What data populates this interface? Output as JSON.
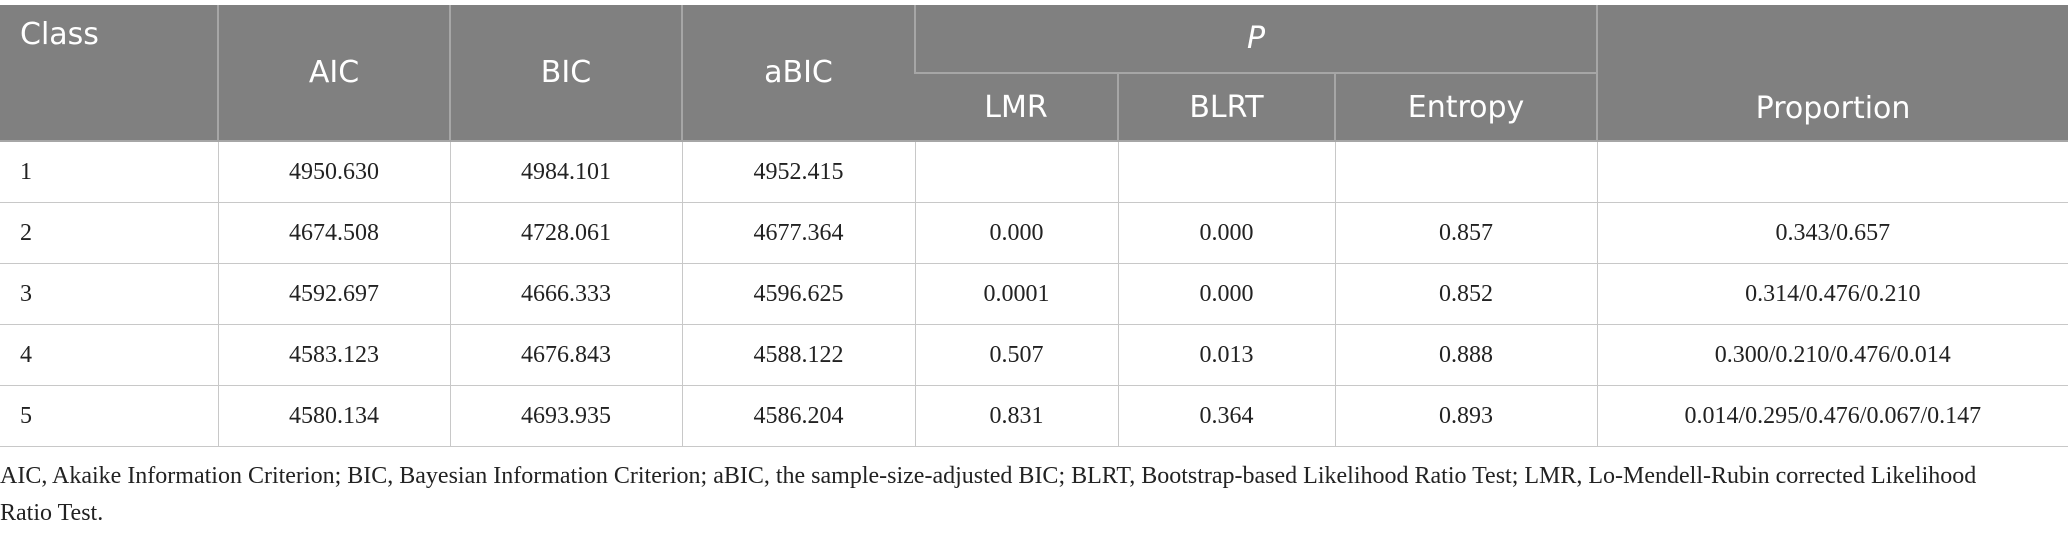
{
  "table": {
    "header": {
      "class": "Class",
      "aic": "AIC",
      "bic": "BIC",
      "abic": "aBIC",
      "p": "P",
      "lmr": "LMR",
      "blrt": "BLRT",
      "entropy": "Entropy",
      "proportion": "Proportion"
    },
    "rows": [
      [
        "1",
        "4950.630",
        "4984.101",
        "4952.415"
      ],
      [
        "2",
        "4674.508",
        "4728.061",
        "4677.364",
        "0.000",
        "0.000",
        "0.857",
        "0.343/0.657"
      ],
      [
        "3",
        "4592.697",
        "4666.333",
        "4596.625",
        "0.0001",
        "0.000",
        "0.852",
        "0.314/0.476/0.210"
      ],
      [
        "4",
        "4583.123",
        "4676.843",
        "4588.122",
        "0.507",
        "0.013",
        "0.888",
        "0.300/0.210/0.476/0.014"
      ],
      [
        "5",
        "4580.134",
        "4693.935",
        "4586.204",
        "0.831",
        "0.364",
        "0.893",
        "0.014/0.295/0.476/0.067/0.147"
      ]
    ]
  },
  "footnote": "AIC, Akaike Information Criterion; BIC, Bayesian Information Criterion; aBIC, the sample-size-adjusted BIC; BLRT, Bootstrap-based Likelihood Ratio Test; LMR, Lo-Mendell-Rubin corrected Likelihood Ratio Test."
}
